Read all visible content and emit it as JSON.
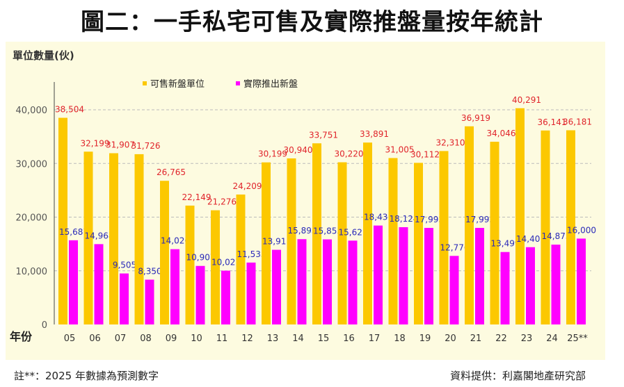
{
  "title": "圖二：一手私宅可售及實際推盤量按年統計",
  "footnote": "註**：2025 年數據為預測數字",
  "source": "資料提供：利嘉閣地產研究部",
  "colors": {
    "available": "#fcc800",
    "launched": "#ff00ff",
    "available_label": "#e0242b",
    "launched_label": "#2a2ab8",
    "background": "#fdfbe0"
  },
  "chart_data": {
    "type": "bar",
    "ylabel": "單位數量(伙)",
    "xlabel": "年份",
    "ylim": [
      0,
      40000
    ],
    "yticks": [
      "0",
      "10,000",
      "20,000",
      "30,000",
      "40,000"
    ],
    "grid": true,
    "legend": "top-left",
    "categories": [
      "05",
      "06",
      "07",
      "08",
      "09",
      "10",
      "11",
      "12",
      "13",
      "14",
      "15",
      "16",
      "17",
      "18",
      "19",
      "20",
      "21",
      "22",
      "23",
      "24",
      "25**"
    ],
    "series": [
      {
        "name": "可售新盤單位",
        "values": [
          38504,
          32199,
          31907,
          31726,
          26765,
          22149,
          21276,
          24209,
          30199,
          30940,
          33751,
          30220,
          33891,
          31005,
          30112,
          32310,
          36919,
          34046,
          40291,
          36141,
          36181
        ],
        "labels": [
          "38,504",
          "32,199",
          "31,907",
          "31,726",
          "26,765",
          "22,149",
          "21,276",
          "24,209",
          "30,199",
          "30,940",
          "33,751",
          "30,220",
          "33,891",
          "31,005",
          "30,112",
          "32,310",
          "36,919",
          "34,046",
          "40,291",
          "36,141",
          "36,181"
        ]
      },
      {
        "name": "實際推出新盤",
        "values": [
          15687,
          14968,
          9505,
          8350,
          14026,
          10907,
          10027,
          11533,
          13911,
          15893,
          15853,
          15621,
          18431,
          18124,
          17993,
          12776,
          17993,
          13499,
          14401,
          14873,
          16000
        ],
        "labels": [
          "15,687",
          "14,968",
          "9,505",
          "8,350",
          "14,026",
          "10,907",
          "10,027",
          "11,533",
          "13,911",
          "15,893",
          "15,853",
          "15,621",
          "18,431",
          "18,124",
          "17,993",
          "12,776",
          "17,993",
          "13,499",
          "14,401",
          "14,873",
          "16,000"
        ]
      }
    ]
  }
}
